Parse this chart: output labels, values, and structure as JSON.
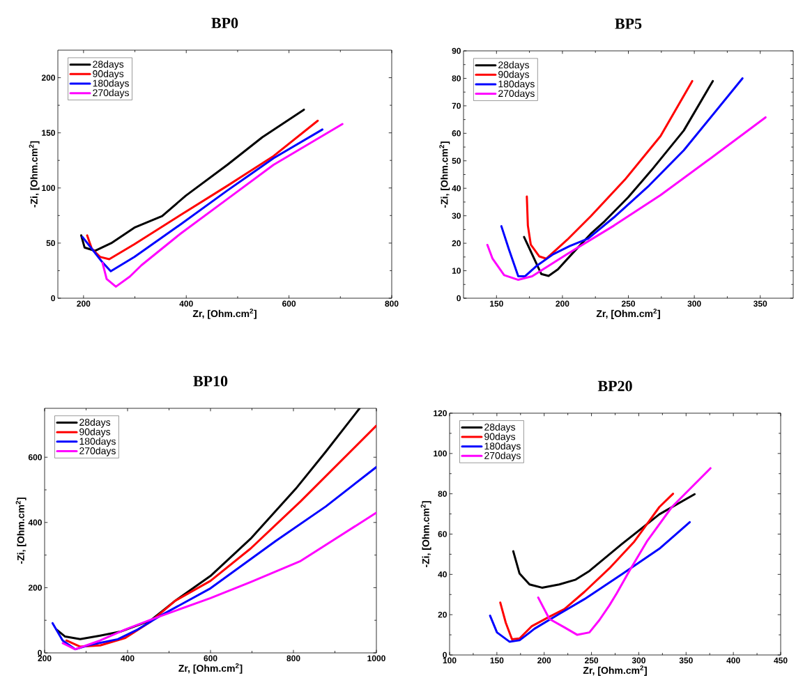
{
  "chart_data": [
    {
      "type": "line",
      "title": "BP0",
      "xlabel": "Zr, [Ohm.cm$^{2}$]",
      "ylabel": "-Zi, [Ohm.cm$^{2}$]",
      "xlim": [
        150,
        800
      ],
      "ylim": [
        0,
        225
      ],
      "xticks": [
        200,
        400,
        600,
        800
      ],
      "yticks": [
        0,
        50,
        100,
        150,
        200
      ],
      "legend": "top left",
      "line_style": "solid",
      "marker": "none",
      "series": [
        {
          "name": "28days",
          "color": "#000000",
          "x": [
            195.5,
            202,
            222.6,
            254,
            299,
            353,
            399,
            480,
            548,
            629
          ],
          "values": [
            57,
            46,
            43,
            50,
            64,
            74.5,
            93,
            121,
            146,
            171
          ]
        },
        {
          "name": "90days",
          "color": "#ff0000",
          "x": [
            207,
            216,
            232,
            250,
            299,
            389,
            480,
            570,
            656
          ],
          "values": [
            57,
            45,
            37.5,
            35.4,
            49,
            75.5,
            102,
            129,
            161
          ]
        },
        {
          "name": "180days",
          "color": "#0000ff",
          "x": [
            198,
            236,
            253,
            299,
            389,
            480,
            570,
            665
          ],
          "values": [
            55.5,
            33,
            24.5,
            37.5,
            67,
            97.7,
            127,
            153
          ]
        },
        {
          "name": "270days",
          "color": "#ff00ff",
          "x": [
            237,
            245,
            263,
            290,
            313,
            389,
            480,
            570,
            704
          ],
          "values": [
            32,
            17.5,
            10.5,
            19.6,
            30,
            58.6,
            90,
            121,
            158
          ]
        }
      ]
    },
    {
      "type": "line",
      "title": "BP5",
      "xlabel": "Zr, [Ohm.cm$^{2}$]",
      "ylabel": "-Zi, [Ohm.cm$^{2}$]",
      "xlim": [
        125,
        375
      ],
      "ylim": [
        0,
        90
      ],
      "xticks": [
        150,
        200,
        250,
        300,
        350
      ],
      "yticks": [
        0,
        10,
        20,
        30,
        40,
        50,
        60,
        70,
        80,
        90
      ],
      "legend": "top left",
      "line_style": "solid",
      "marker": "none",
      "series": [
        {
          "name": "28days",
          "color": "#000000",
          "x": [
            170.9,
            177,
            184,
            189.5,
            196.6,
            207,
            221.4,
            232,
            249.8,
            267.4,
            292,
            314
          ],
          "values": [
            22.3,
            16,
            8.8,
            8.1,
            10.5,
            16,
            23.4,
            28,
            36.7,
            46.5,
            61,
            79
          ]
        },
        {
          "name": "90days",
          "color": "#ff0000",
          "x": [
            173,
            173.8,
            176,
            182.5,
            187.8,
            203.7,
            221.4,
            248,
            274.4,
            298.4
          ],
          "values": [
            37,
            26.4,
            19.5,
            15.2,
            14.4,
            21.3,
            29.8,
            43.5,
            59,
            79
          ]
        },
        {
          "name": "180days",
          "color": "#0000ff",
          "x": [
            153.7,
            159.4,
            166.5,
            171.7,
            180.5,
            193,
            205.5,
            219.5,
            239,
            265.7,
            292,
            336.5
          ],
          "values": [
            26.2,
            17.8,
            8,
            8,
            11.8,
            16,
            19,
            21.7,
            29.4,
            41,
            53.8,
            80
          ]
        },
        {
          "name": "270days",
          "color": "#ff00ff",
          "x": [
            143.1,
            147,
            155.8,
            166.5,
            177,
            203.7,
            239,
            274.4,
            309.8,
            354
          ],
          "values": [
            19.4,
            14.4,
            8.4,
            6.7,
            8,
            16.1,
            26.4,
            37.5,
            50,
            65.8
          ]
        }
      ]
    },
    {
      "type": "line",
      "title": "BP10",
      "xlabel": "Zr, [Ohm.cm$^{2}$]",
      "ylabel": "-Zi, [Ohm.cm$^{2}$]",
      "xlim": [
        200,
        1000
      ],
      "ylim": [
        0,
        750
      ],
      "xticks": [
        200,
        400,
        600,
        800,
        1000
      ],
      "yticks": [
        0,
        200,
        400,
        600
      ],
      "legend": "top left",
      "line_style": "solid",
      "marker": "none",
      "series": [
        {
          "name": "28days",
          "color": "#000000",
          "x": [
            228.4,
            249.5,
            285.8,
            334,
            382.5,
            455,
            515,
            600,
            696.7,
            805.4,
            878,
            959.5
          ],
          "values": [
            72,
            50,
            42,
            53,
            65,
            99,
            160,
            236,
            350,
            503,
            617,
            750
          ]
        },
        {
          "name": "90days",
          "color": "#ff0000",
          "x": [
            252.6,
            285.8,
            334,
            394.7,
            455,
            515,
            600,
            696.7,
            817.5,
            1000
          ],
          "values": [
            38,
            19,
            23,
            46,
            95,
            160,
            221,
            320,
            465,
            697
          ]
        },
        {
          "name": "180days",
          "color": "#0000ff",
          "x": [
            219.3,
            243.5,
            273.7,
            304,
            376.5,
            424.8,
            479.2,
            600,
            757,
            878,
            1000
          ],
          "values": [
            91,
            38,
            11,
            23,
            42,
            72,
            114,
            198,
            343,
            449,
            570
          ]
        },
        {
          "name": "270days",
          "color": "#ff00ff",
          "x": [
            243.5,
            273.7,
            334,
            394.7,
            467,
            600,
            696.7,
            817.5,
            1000
          ],
          "values": [
            30,
            11,
            38,
            72,
            107,
            168,
            217,
            282,
            430
          ]
        }
      ]
    },
    {
      "type": "line",
      "title": "BP20",
      "xlabel": "Zr, [Ohm.cm$^{2}$]",
      "ylabel": "-Zi, [Ohm.cm$^{2}$]",
      "xlim": [
        100,
        450
      ],
      "ylim": [
        0,
        120
      ],
      "xticks": [
        100,
        150,
        200,
        250,
        300,
        350,
        400,
        450
      ],
      "yticks": [
        0,
        20,
        40,
        60,
        80,
        100,
        120
      ],
      "legend": "top left",
      "line_style": "solid",
      "marker": "none",
      "series": [
        {
          "name": "28days",
          "color": "#000000",
          "x": [
            167.3,
            173.9,
            184.5,
            197.7,
            216,
            233.3,
            247.8,
            282,
            321.7,
            359
          ],
          "values": [
            51.5,
            40.5,
            35,
            33.4,
            35,
            37.4,
            41.7,
            55,
            69.8,
            79.8
          ]
        },
        {
          "name": "90days",
          "color": "#ff0000",
          "x": [
            153.6,
            159.4,
            166,
            174,
            187,
            205.5,
            221.4,
            242.5,
            268.9,
            295.3,
            321.7,
            336.2
          ],
          "values": [
            26,
            16,
            7.8,
            8.2,
            14.3,
            19,
            22.8,
            31.3,
            43,
            56.3,
            73.4,
            80
          ]
        },
        {
          "name": "180days",
          "color": "#0000ff",
          "x": [
            142.8,
            150.1,
            163.3,
            174,
            189.7,
            216,
            242.5,
            282,
            321.7,
            353.9
          ],
          "values": [
            19.5,
            11.2,
            6.6,
            7.3,
            13,
            20.4,
            27.7,
            40,
            52.7,
            65.9
          ]
        },
        {
          "name": "270days",
          "color": "#ff00ff",
          "x": [
            193.7,
            205.5,
            221.4,
            235,
            247.8,
            258.3,
            268.9,
            276.8,
            290,
            308.5,
            334.9,
            375.8
          ],
          "values": [
            28.5,
            17.9,
            13.7,
            10,
            11.2,
            17.3,
            24.6,
            30.7,
            41.7,
            56.3,
            73.4,
            92.7
          ]
        }
      ]
    }
  ]
}
